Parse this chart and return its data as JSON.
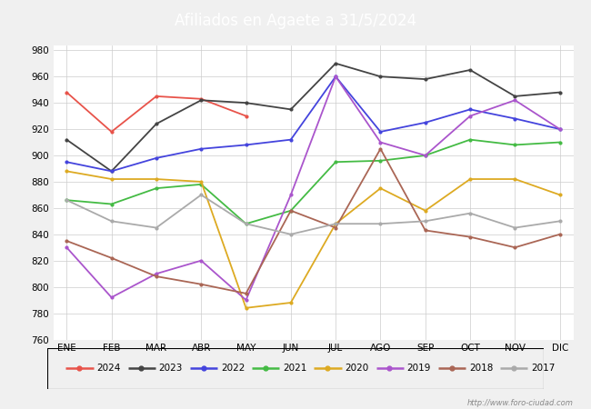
{
  "title": "Afiliados en Agaete a 31/5/2024",
  "title_bg_color": "#4a86c8",
  "title_text_color": "white",
  "ylim": [
    760,
    984
  ],
  "yticks": [
    760,
    780,
    800,
    820,
    840,
    860,
    880,
    900,
    920,
    940,
    960,
    980
  ],
  "months": [
    "ENE",
    "FEB",
    "MAR",
    "ABR",
    "MAY",
    "JUN",
    "JUL",
    "AGO",
    "SEP",
    "OCT",
    "NOV",
    "DIC"
  ],
  "series": {
    "2024": {
      "color": "#e8534a",
      "values": [
        948,
        918,
        945,
        943,
        930,
        null,
        null,
        null,
        null,
        null,
        null,
        null
      ]
    },
    "2023": {
      "color": "#444444",
      "values": [
        912,
        888,
        924,
        942,
        940,
        935,
        970,
        960,
        958,
        965,
        945,
        948
      ]
    },
    "2022": {
      "color": "#4444dd",
      "values": [
        895,
        888,
        898,
        905,
        908,
        912,
        960,
        918,
        925,
        935,
        928,
        920
      ]
    },
    "2021": {
      "color": "#44bb44",
      "values": [
        866,
        863,
        875,
        878,
        848,
        858,
        895,
        896,
        900,
        912,
        908,
        910
      ]
    },
    "2020": {
      "color": "#ddaa22",
      "values": [
        888,
        882,
        882,
        880,
        784,
        788,
        848,
        875,
        858,
        882,
        882,
        870
      ]
    },
    "2019": {
      "color": "#aa55cc",
      "values": [
        830,
        792,
        810,
        820,
        790,
        870,
        960,
        910,
        900,
        930,
        942,
        920
      ]
    },
    "2018": {
      "color": "#aa6655",
      "values": [
        835,
        822,
        808,
        802,
        795,
        858,
        845,
        905,
        843,
        838,
        830,
        840
      ]
    },
    "2017": {
      "color": "#aaaaaa",
      "values": [
        866,
        850,
        845,
        870,
        848,
        840,
        848,
        848,
        850,
        856,
        845,
        850
      ]
    }
  },
  "watermark": "http://www.foro-ciudad.com",
  "bg_color": "#f0f0f0",
  "plot_bg_color": "#ffffff",
  "grid_color": "#cccccc"
}
